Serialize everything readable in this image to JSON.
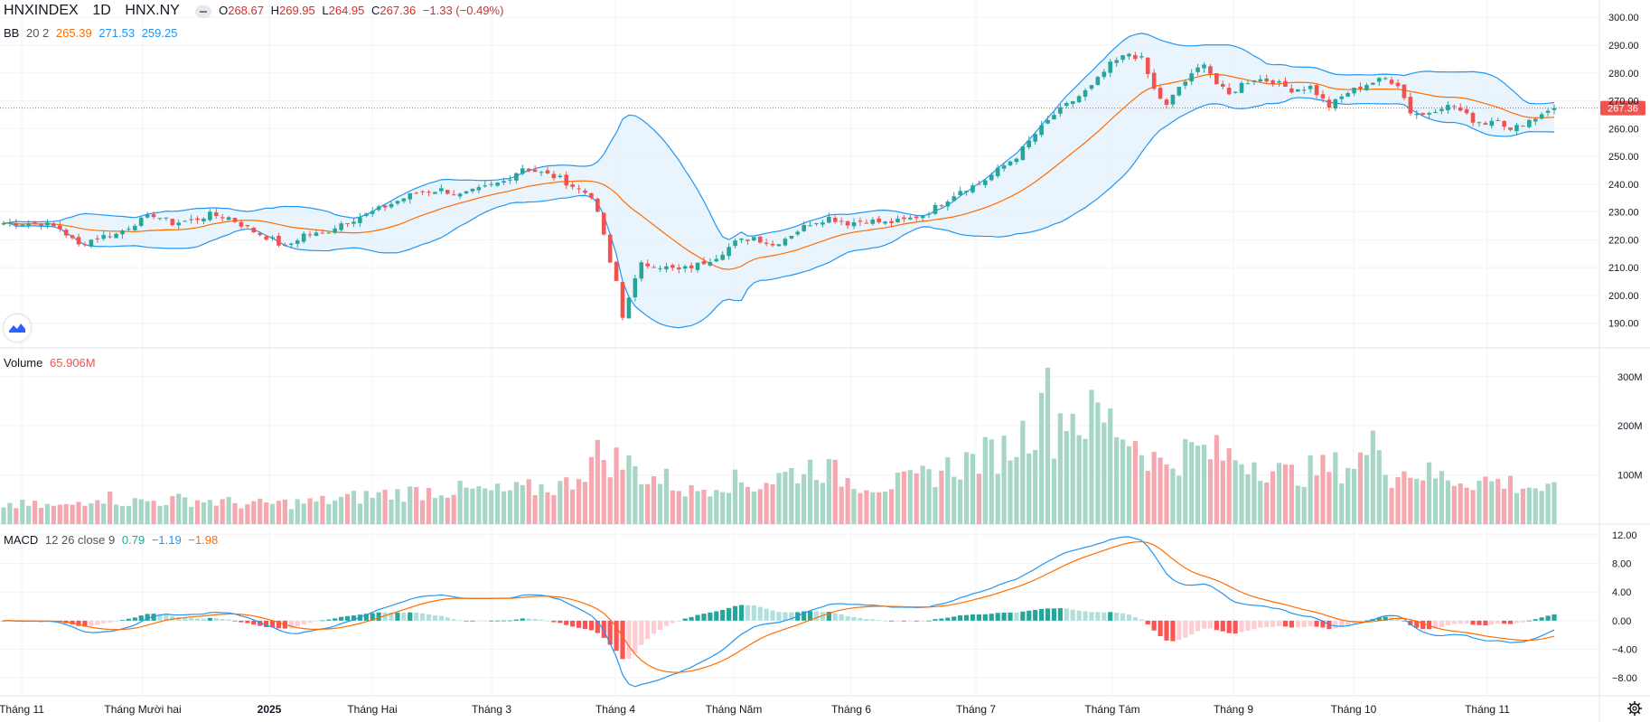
{
  "header": {
    "symbol": "HNXINDEX",
    "interval": "1D",
    "exchange": "HNX.NY",
    "open_label": "O",
    "open": "268.67",
    "high_label": "H",
    "high": "269.95",
    "low_label": "L",
    "low": "264.95",
    "close_label": "C",
    "close": "267.36",
    "change": "−1.33 (−0.49%)"
  },
  "bb_legend": {
    "name": "BB",
    "params": "20 2",
    "basis": "265.39",
    "upper": "271.53",
    "lower": "259.25"
  },
  "volume_legend": {
    "name": "Volume",
    "value": "65.906M"
  },
  "macd_legend": {
    "name": "MACD",
    "params": "12 26 close 9",
    "hist": "0.79",
    "macd": "−1.19",
    "signal": "−1.98"
  },
  "last_price_label": "267.36",
  "colors": {
    "up": "#26a69a",
    "down": "#ef5350",
    "vol_up": "#a5d6c6",
    "vol_down": "#f4a9b0",
    "bb_line": "#2196f3",
    "bb_fill": "#e3f0fb",
    "basis": "#ff6d00",
    "macd": "#2196f3",
    "signal": "#ff6d00",
    "hist_up_strong": "#26a69a",
    "hist_up_weak": "#b2dfdb",
    "hist_down_strong": "#ff5252",
    "hist_down_weak": "#ffcdd2",
    "last_price_bg": "#ef5350"
  },
  "chart_data": {
    "type": "candlestick",
    "price_axis": {
      "min": 185,
      "max": 303,
      "ticks": [
        "300.00",
        "290.00",
        "280.00",
        "270.00",
        "260.00",
        "250.00",
        "240.00",
        "230.00",
        "220.00",
        "210.00",
        "200.00",
        "190.00"
      ]
    },
    "volume_axis": {
      "max": 340,
      "unit": "M",
      "ticks": [
        "300M",
        "200M",
        "100M"
      ]
    },
    "macd_axis": {
      "min": -10,
      "max": 13,
      "ticks": [
        "12.00",
        "8.00",
        "4.00",
        "0.00",
        "−4.00",
        "−8.00"
      ]
    },
    "time_labels": [
      "Tháng 11",
      "Tháng Mười hai",
      "2025",
      "Tháng Hai",
      "Tháng 3",
      "Tháng 4",
      "Tháng Năm",
      "Tháng 6",
      "Tháng 7",
      "Tháng Tám",
      "Tháng 9",
      "Tháng 10",
      "Tháng 11"
    ],
    "bold_time_labels": [
      "2025"
    ],
    "anchors": [
      [
        0,
        226
      ],
      [
        3,
        226
      ],
      [
        6,
        226
      ],
      [
        9,
        224
      ],
      [
        12,
        218
      ],
      [
        15,
        221
      ],
      [
        18,
        222
      ],
      [
        21,
        226
      ],
      [
        24,
        229
      ],
      [
        27,
        226
      ],
      [
        30,
        227
      ],
      [
        33,
        229
      ],
      [
        36,
        228
      ],
      [
        40,
        223
      ],
      [
        43,
        220
      ],
      [
        45,
        217
      ],
      [
        48,
        222
      ],
      [
        51,
        222
      ],
      [
        54,
        226
      ],
      [
        58,
        229
      ],
      [
        62,
        233
      ],
      [
        66,
        237
      ],
      [
        70,
        238
      ],
      [
        73,
        236
      ],
      [
        76,
        238
      ],
      [
        80,
        241
      ],
      [
        83,
        246
      ],
      [
        86,
        244
      ],
      [
        89,
        242
      ],
      [
        92,
        238
      ],
      [
        94,
        236
      ],
      [
        96,
        222
      ],
      [
        97,
        211
      ],
      [
        98,
        205
      ],
      [
        99,
        192
      ],
      [
        100,
        200
      ],
      [
        102,
        211
      ],
      [
        104,
        211
      ],
      [
        106,
        210
      ],
      [
        108,
        209
      ],
      [
        111,
        211
      ],
      [
        114,
        214
      ],
      [
        117,
        219
      ],
      [
        120,
        221
      ],
      [
        123,
        218
      ],
      [
        126,
        222
      ],
      [
        129,
        226
      ],
      [
        132,
        228
      ],
      [
        135,
        226
      ],
      [
        138,
        227
      ],
      [
        141,
        226
      ],
      [
        144,
        227
      ],
      [
        147,
        229
      ],
      [
        150,
        233
      ],
      [
        153,
        238
      ],
      [
        156,
        240
      ],
      [
        159,
        245
      ],
      [
        162,
        250
      ],
      [
        165,
        258
      ],
      [
        168,
        265
      ],
      [
        171,
        270
      ],
      [
        174,
        275
      ],
      [
        177,
        283
      ],
      [
        180,
        287
      ],
      [
        182,
        285
      ],
      [
        184,
        274
      ],
      [
        186,
        268
      ],
      [
        188,
        275
      ],
      [
        190,
        279
      ],
      [
        192,
        284
      ],
      [
        194,
        276
      ],
      [
        196,
        272
      ],
      [
        198,
        276
      ],
      [
        200,
        278
      ],
      [
        203,
        277
      ],
      [
        206,
        274
      ],
      [
        209,
        275
      ],
      [
        212,
        268
      ],
      [
        215,
        273
      ],
      [
        218,
        276
      ],
      [
        221,
        278
      ],
      [
        223,
        276
      ],
      [
        225,
        266
      ],
      [
        227,
        265
      ],
      [
        230,
        268
      ],
      [
        232,
        268
      ],
      [
        235,
        263
      ],
      [
        237,
        262
      ],
      [
        239,
        264
      ],
      [
        241,
        259
      ],
      [
        243,
        262
      ],
      [
        245,
        264
      ],
      [
        247,
        267
      ],
      [
        248,
        267.36
      ]
    ],
    "volume_anchors": [
      [
        0,
        40
      ],
      [
        10,
        35
      ],
      [
        15,
        60
      ],
      [
        20,
        45
      ],
      [
        30,
        50
      ],
      [
        40,
        40
      ],
      [
        50,
        45
      ],
      [
        60,
        60
      ],
      [
        70,
        70
      ],
      [
        80,
        65
      ],
      [
        90,
        80
      ],
      [
        95,
        140
      ],
      [
        98,
        130
      ],
      [
        100,
        120
      ],
      [
        103,
        95
      ],
      [
        106,
        90
      ],
      [
        110,
        65
      ],
      [
        115,
        90
      ],
      [
        120,
        80
      ],
      [
        125,
        100
      ],
      [
        130,
        120
      ],
      [
        135,
        90
      ],
      [
        140,
        80
      ],
      [
        145,
        85
      ],
      [
        150,
        110
      ],
      [
        155,
        130
      ],
      [
        160,
        150
      ],
      [
        163,
        180
      ],
      [
        165,
        210
      ],
      [
        166,
        320
      ],
      [
        168,
        190
      ],
      [
        170,
        240
      ],
      [
        172,
        210
      ],
      [
        175,
        220
      ],
      [
        178,
        200
      ],
      [
        180,
        180
      ],
      [
        182,
        160
      ],
      [
        185,
        120
      ],
      [
        190,
        150
      ],
      [
        195,
        140
      ],
      [
        200,
        130
      ],
      [
        205,
        100
      ],
      [
        210,
        110
      ],
      [
        215,
        120
      ],
      [
        218,
        140
      ],
      [
        220,
        170
      ],
      [
        222,
        100
      ],
      [
        225,
        110
      ],
      [
        230,
        95
      ],
      [
        235,
        90
      ],
      [
        240,
        85
      ],
      [
        245,
        75
      ],
      [
        248,
        66
      ]
    ],
    "candle_count": 249,
    "note_source": "values estimated from the chart"
  }
}
